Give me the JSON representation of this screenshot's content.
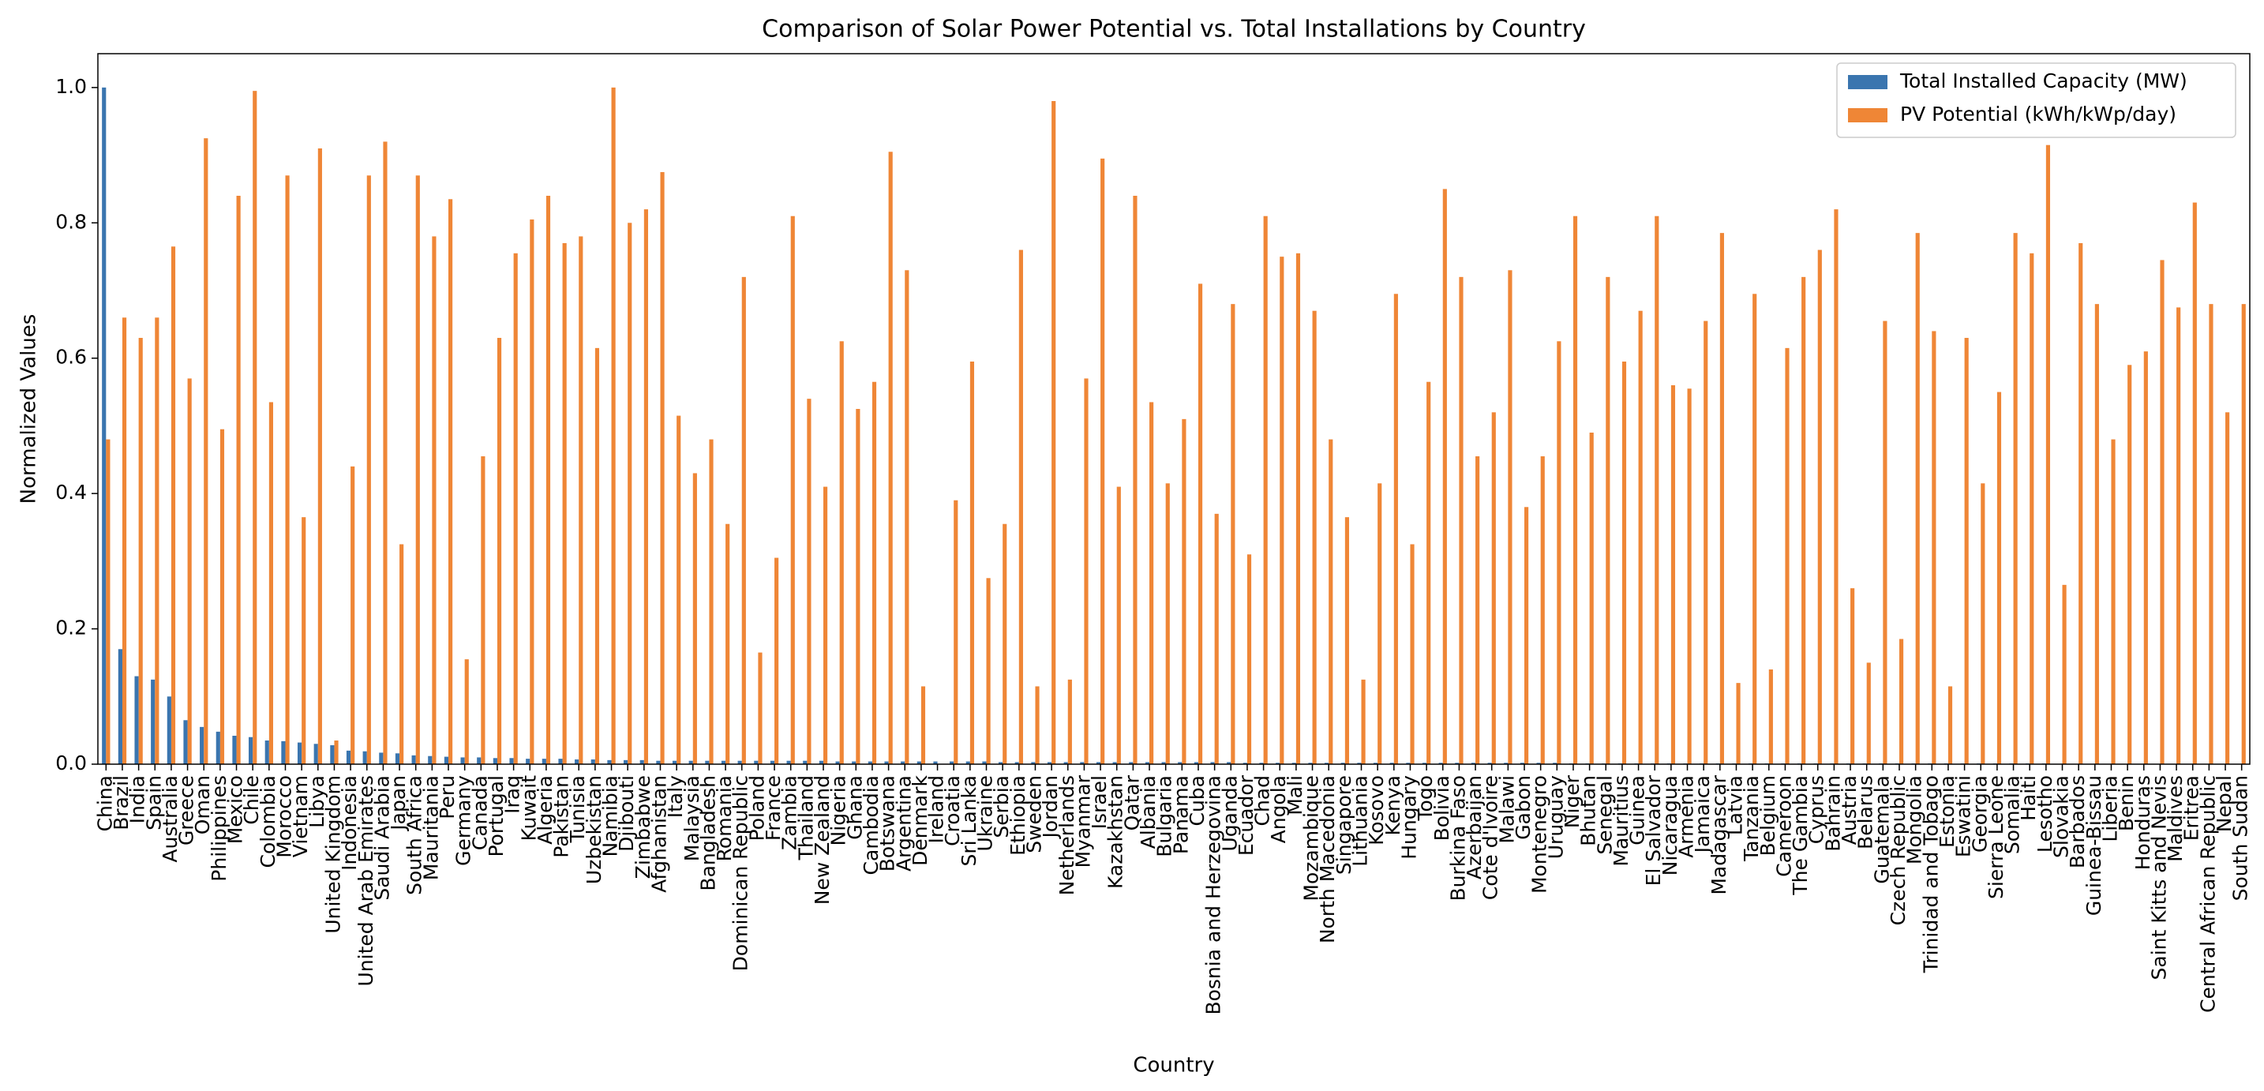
{
  "chart_data": {
    "type": "bar",
    "title": "Comparison of Solar Power Potential vs. Total Installations by Country",
    "xlabel": "Country",
    "ylabel": "Normalized Values",
    "categories": [
      "China",
      "Brazil",
      "India",
      "Spain",
      "Australia",
      "Greece",
      "Oman",
      "Philippines",
      "Mexico",
      "Chile",
      "Colombia",
      "Morocco",
      "Vietnam",
      "Libya",
      "United Kingdom",
      "Indonesia",
      "United Arab Emirates",
      "Saudi Arabia",
      "Japan",
      "South Africa",
      "Mauritania",
      "Peru",
      "Germany",
      "Canada",
      "Portugal",
      "Iraq",
      "Kuwait",
      "Algeria",
      "Pakistan",
      "Tunisia",
      "Uzbekistan",
      "Namibia",
      "Djibouti",
      "Zimbabwe",
      "Afghanistan",
      "Italy",
      "Malaysia",
      "Bangladesh",
      "Romania",
      "Dominican Republic",
      "Poland",
      "France",
      "Zambia",
      "Thailand",
      "New Zealand",
      "Nigeria",
      "Ghana",
      "Cambodia",
      "Botswana",
      "Argentina",
      "Denmark",
      "Ireland",
      "Croatia",
      "Sri Lanka",
      "Ukraine",
      "Serbia",
      "Ethiopia",
      "Sweden",
      "Jordan",
      "Netherlands",
      "Myanmar",
      "Israel",
      "Kazakhstan",
      "Qatar",
      "Albania",
      "Bulgaria",
      "Panama",
      "Cuba",
      "Bosnia and Herzegovina",
      "Uganda",
      "Ecuador",
      "Chad",
      "Angola",
      "Mali",
      "Mozambique",
      "North Macedonia",
      "Singapore",
      "Lithuania",
      "Kosovo",
      "Kenya",
      "Hungary",
      "Togo",
      "Bolivia",
      "Burkina Faso",
      "Azerbaijan",
      "Cote d'Ivoire",
      "Malawi",
      "Gabon",
      "Montenegro",
      "Uruguay",
      "Niger",
      "Bhutan",
      "Senegal",
      "Mauritius",
      "Guinea",
      "El Salvador",
      "Nicaragua",
      "Armenia",
      "Jamaica",
      "Madagascar",
      "Latvia",
      "Tanzania",
      "Belgium",
      "Cameroon",
      "The Gambia",
      "Cyprus",
      "Bahrain",
      "Austria",
      "Belarus",
      "Guatemala",
      "Czech Republic",
      "Mongolia",
      "Trinidad and Tobago",
      "Estonia",
      "Eswatini",
      "Georgia",
      "Sierra Leone",
      "Somalia",
      "Haiti",
      "Lesotho",
      "Slovakia",
      "Barbados",
      "Guinea-Bissau",
      "Liberia",
      "Benin",
      "Honduras",
      "Saint Kitts and Nevis",
      "Maldives",
      "Eritrea",
      "Central African Republic",
      "Nepal",
      "South Sudan"
    ],
    "series": [
      {
        "name": "Total Installed Capacity (MW)",
        "color": "#3a75af",
        "values": [
          1.0,
          0.17,
          0.13,
          0.125,
          0.1,
          0.065,
          0.055,
          0.048,
          0.042,
          0.04,
          0.035,
          0.034,
          0.032,
          0.03,
          0.028,
          0.02,
          0.019,
          0.017,
          0.016,
          0.013,
          0.012,
          0.011,
          0.01,
          0.01,
          0.009,
          0.009,
          0.008,
          0.008,
          0.008,
          0.007,
          0.007,
          0.006,
          0.006,
          0.006,
          0.005,
          0.005,
          0.005,
          0.005,
          0.005,
          0.005,
          0.005,
          0.005,
          0.005,
          0.005,
          0.005,
          0.004,
          0.004,
          0.004,
          0.004,
          0.004,
          0.004,
          0.004,
          0.004,
          0.004,
          0.004,
          0.003,
          0.003,
          0.003,
          0.003,
          0.003,
          0.003,
          0.003,
          0.003,
          0.003,
          0.003,
          0.003,
          0.003,
          0.003,
          0.003,
          0.003,
          0.002,
          0.002,
          0.002,
          0.002,
          0.002,
          0.002,
          0.002,
          0.002,
          0.002,
          0.002,
          0.002,
          0.002,
          0.002,
          0.002,
          0.002,
          0.002,
          0.002,
          0.002,
          0.002,
          0.002,
          0.001,
          0.001,
          0.001,
          0.001,
          0.001,
          0.001,
          0.001,
          0.001,
          0.001,
          0.001,
          0.001,
          0.001,
          0.001,
          0.001,
          0.001,
          0.001,
          0.001,
          0.001,
          0.001,
          0.001,
          0.001,
          0.001,
          0.001,
          0.001,
          0.001,
          0.001,
          0.001,
          0.001,
          0.001,
          0.001,
          0,
          0,
          0,
          0,
          0,
          0,
          0,
          0,
          0,
          0,
          0,
          0
        ]
      },
      {
        "name": "PV Potential (kWh/kWp/day)",
        "color": "#ef8636",
        "values": [
          0.48,
          0.66,
          0.63,
          0.66,
          0.765,
          0.57,
          0.925,
          0.495,
          0.84,
          0.995,
          0.535,
          0.87,
          0.365,
          0.91,
          0.035,
          0.44,
          0.87,
          0.92,
          0.325,
          0.87,
          0.78,
          0.835,
          0.155,
          0.455,
          0.63,
          0.755,
          0.805,
          0.84,
          0.77,
          0.78,
          0.615,
          1.0,
          0.8,
          0.82,
          0.875,
          0.515,
          0.43,
          0.48,
          0.355,
          0.72,
          0.165,
          0.305,
          0.81,
          0.54,
          0.41,
          0.625,
          0.525,
          0.565,
          0.905,
          0.73,
          0.115,
          0,
          0.39,
          0.595,
          0.275,
          0.355,
          0.76,
          0.115,
          0.98,
          0.125,
          0.57,
          0.895,
          0.41,
          0.84,
          0.535,
          0.415,
          0.51,
          0.71,
          0.37,
          0.68,
          0.31,
          0.81,
          0.75,
          0.755,
          0.67,
          0.48,
          0.365,
          0.125,
          0.415,
          0.695,
          0.325,
          0.565,
          0.85,
          0.72,
          0.455,
          0.52,
          0.73,
          0.38,
          0.455,
          0.625,
          0.81,
          0.49,
          0.72,
          0.595,
          0.67,
          0.81,
          0.56,
          0.555,
          0.655,
          0.785,
          0.12,
          0.695,
          0.14,
          0.615,
          0.72,
          0.76,
          0.82,
          0.26,
          0.15,
          0.655,
          0.185,
          0.785,
          0.64,
          0.115,
          0.63,
          0.415,
          0.55,
          0.785,
          0.755,
          0.915,
          0.265,
          0.77,
          0.68,
          0.48,
          0.59,
          0.61,
          0.745,
          0.675,
          0.83,
          0.68,
          0.52,
          0.68
        ]
      }
    ],
    "ylim": [
      0,
      1.05
    ],
    "yticks": [
      {
        "value": 0,
        "label": "0.0"
      },
      0.2,
      0.4,
      0.6,
      0.8,
      {
        "value": 1,
        "label": "1.0"
      }
    ],
    "grid": false,
    "legend": "upper right"
  }
}
